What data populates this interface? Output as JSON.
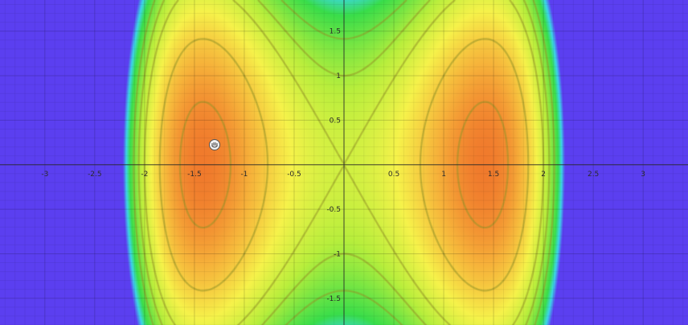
{
  "chart_data": {
    "type": "heatmap",
    "title": "",
    "xlabel": "",
    "ylabel": "",
    "function": "z = x^2*(4 - x^2) - y^2",
    "xlim": [
      -3.45,
      3.45
    ],
    "ylim": [
      -1.8,
      1.85
    ],
    "grid": true,
    "colormap": [
      {
        "stop": 0.0,
        "color": "#5b3ff0"
      },
      {
        "stop": 0.1,
        "color": "#3cd6e8"
      },
      {
        "stop": 0.2,
        "color": "#39dd4a"
      },
      {
        "stop": 0.45,
        "color": "#b8ee3c"
      },
      {
        "stop": 0.65,
        "color": "#f6f24a"
      },
      {
        "stop": 0.85,
        "color": "#f6b23a"
      },
      {
        "stop": 1.0,
        "color": "#f07a2c"
      }
    ],
    "contour_levels": [
      -2,
      -1,
      0,
      2,
      3.5
    ],
    "x_ticks": [
      {
        "value": -3,
        "label": "-3"
      },
      {
        "value": -2.5,
        "label": "-2.5"
      },
      {
        "value": -2,
        "label": "-2"
      },
      {
        "value": -1.5,
        "label": "-1.5"
      },
      {
        "value": -1,
        "label": "-1"
      },
      {
        "value": -0.5,
        "label": "-0.5"
      },
      {
        "value": 0.5,
        "label": "0.5"
      },
      {
        "value": 1,
        "label": "1"
      },
      {
        "value": 1.5,
        "label": "1.5"
      },
      {
        "value": 2,
        "label": "2"
      },
      {
        "value": 2.5,
        "label": "2.5"
      },
      {
        "value": 3,
        "label": "3"
      }
    ],
    "y_ticks": [
      {
        "value": 1.5,
        "label": "1.5"
      },
      {
        "value": 1,
        "label": "1"
      },
      {
        "value": 0.5,
        "label": "0.5"
      },
      {
        "value": -0.5,
        "label": "-0.5"
      },
      {
        "value": -1,
        "label": "-1"
      },
      {
        "value": -1.5,
        "label": "-1.5"
      }
    ]
  },
  "cursor": {
    "icon": "grab-hand-icon",
    "position": [
      -1.3,
      0.22
    ]
  }
}
